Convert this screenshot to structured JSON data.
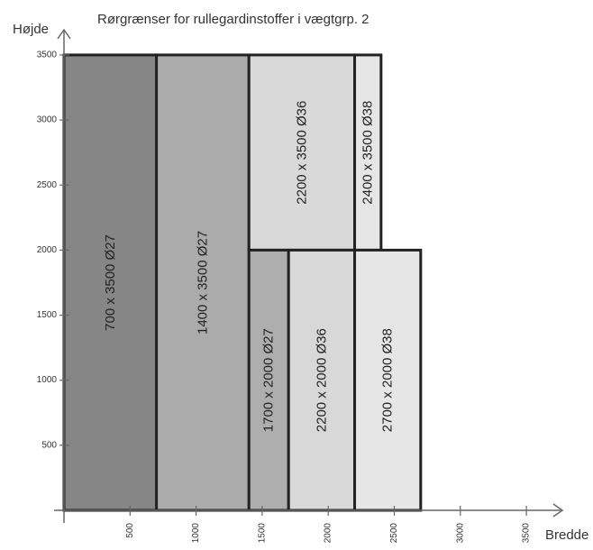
{
  "chart_data": {
    "type": "bar",
    "title": "Rørgrænser for rullegardinstoffer i vægtgrp. 2",
    "xlabel": "Bredde",
    "ylabel": "Højde",
    "xlim": [
      0,
      3500
    ],
    "ylim": [
      0,
      3500
    ],
    "xticks": [
      500,
      1000,
      1500,
      2000,
      2500,
      3000,
      3500
    ],
    "yticks": [
      500,
      1000,
      1500,
      2000,
      2500,
      3000,
      3500
    ],
    "grid": false,
    "regions": [
      {
        "x0": 0,
        "x1": 700,
        "y0": 0,
        "y1": 3500,
        "label": "700 x 3500 Ø27",
        "color": "#868686"
      },
      {
        "x0": 700,
        "x1": 1400,
        "y0": 0,
        "y1": 3500,
        "label": "1400 x 3500 Ø27",
        "color": "#ababab"
      },
      {
        "x0": 1400,
        "x1": 2200,
        "y0": 2000,
        "y1": 3500,
        "label": "2200 x 3500 Ø36",
        "color": "#d9d9d9"
      },
      {
        "x0": 2200,
        "x1": 2400,
        "y0": 2000,
        "y1": 3500,
        "label": "2400 x 3500 Ø38",
        "color": "#e6e6e6"
      },
      {
        "x0": 1400,
        "x1": 1700,
        "y0": 0,
        "y1": 2000,
        "label": "1700 x 2000 Ø27",
        "color": "#aeaeae"
      },
      {
        "x0": 1700,
        "x1": 2200,
        "y0": 0,
        "y1": 2000,
        "label": "2200 x 2000 Ø36",
        "color": "#d8d8d8"
      },
      {
        "x0": 2200,
        "x1": 2700,
        "y0": 0,
        "y1": 2000,
        "label": "2700 x 2000 Ø38",
        "color": "#e6e6e6"
      }
    ]
  }
}
